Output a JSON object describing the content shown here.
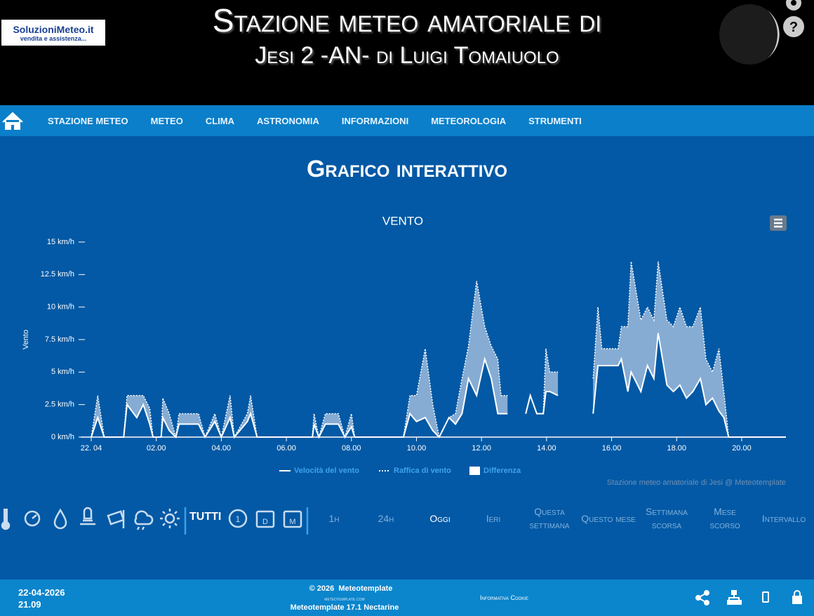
{
  "header": {
    "logo": {
      "brand": "SoluzioniMeteo.it",
      "tagline": "vendita e assistenza..."
    },
    "title_line1": "Stazione meteo amatoriale di",
    "title_line2": "Jesi 2 -AN- di Luigi Tomaiuolo"
  },
  "nav": {
    "items": [
      "STAZIONE METEO",
      "METEO",
      "CLIMA",
      "ASTRONOMIA",
      "INFORMAZIONI",
      "METEOROLOGIA",
      "STRUMENTI"
    ]
  },
  "page_title": "Grafico interattivo",
  "chart_data": {
    "type": "line",
    "title": "VENTO",
    "y_label": "Vento",
    "credit": "Stazione meteo amatoriale di Jesi @ Meteotemplate",
    "xlim": [
      0,
      21.36
    ],
    "xticks": [
      {
        "value": 0,
        "label": "22. 04"
      },
      {
        "value": 2,
        "label": "02.00"
      },
      {
        "value": 4,
        "label": "04.00"
      },
      {
        "value": 6,
        "label": "06.00"
      },
      {
        "value": 8,
        "label": "08.00"
      },
      {
        "value": 10,
        "label": "10.00"
      },
      {
        "value": 12,
        "label": "12.00"
      },
      {
        "value": 14,
        "label": "14.00"
      },
      {
        "value": 16,
        "label": "16.00"
      },
      {
        "value": 18,
        "label": "18.00"
      },
      {
        "value": 20,
        "label": "20.00"
      }
    ],
    "ylim": [
      0,
      15
    ],
    "yticks": [
      {
        "value": 0,
        "label": "0 km/h"
      },
      {
        "value": 2.5,
        "label": "2.5 km/h"
      },
      {
        "value": 5,
        "label": "5 km/h"
      },
      {
        "value": 7.5,
        "label": "7.5 km/h"
      },
      {
        "value": 10,
        "label": "10 km/h"
      },
      {
        "value": 12.5,
        "label": "12.5 km/h"
      },
      {
        "value": 15,
        "label": "15 km/h"
      }
    ],
    "x": [
      0,
      0.2,
      0.4,
      1.0,
      1.1,
      1.4,
      1.6,
      1.8,
      1.9,
      2.15,
      2.2,
      2.4,
      2.6,
      2.7,
      3.3,
      3.5,
      3.8,
      4.0,
      4.27,
      4.4,
      4.8,
      4.9,
      5.1,
      6.8,
      6.85,
      7.0,
      7.2,
      7.6,
      7.8,
      8.0,
      8.1,
      9.6,
      9.8,
      10.0,
      10.27,
      10.5,
      10.7,
      11.0,
      11.2,
      11.4,
      11.6,
      11.85,
      12.1,
      12.3,
      12.5,
      12.6,
      12.8,
      12.9,
      13.36,
      13.5,
      13.7,
      13.9,
      13.98,
      14.1,
      14.35,
      14.5,
      15.43,
      15.58,
      15.7,
      16.2,
      16.3,
      16.5,
      16.6,
      16.9,
      17.1,
      17.3,
      17.43,
      17.7,
      17.9,
      18.1,
      18.3,
      18.5,
      18.73,
      18.9,
      19.1,
      19.3,
      19.45,
      19.6,
      21.36
    ],
    "series": [
      {
        "name": "Velocità del vento",
        "color": "#ffffff",
        "dash": false,
        "values": [
          0,
          1.5,
          0,
          0,
          2.5,
          1.5,
          2.5,
          1.0,
          0,
          0,
          1.5,
          0.5,
          0,
          1.0,
          1.0,
          0,
          1.2,
          0,
          1.5,
          0,
          1.2,
          1.8,
          0,
          0,
          1.0,
          0,
          1.0,
          1.0,
          0,
          0.8,
          0,
          0,
          1.8,
          1.2,
          1.5,
          0.5,
          0,
          1.5,
          1.0,
          1.8,
          4.5,
          3.2,
          6.0,
          4.5,
          1.8,
          1.8,
          1.8,
          null,
          1.8,
          3.2,
          1.8,
          1.8,
          3.5,
          3.5,
          3.2,
          null,
          1.8,
          5.5,
          5.5,
          5.5,
          6.0,
          3.5,
          5.0,
          3.5,
          5.5,
          4.5,
          8.0,
          4.0,
          3.5,
          4.0,
          3.0,
          3.5,
          4.5,
          2.5,
          3.0,
          2.0,
          1.5,
          0,
          0
        ]
      },
      {
        "name": "Raffica di vento",
        "color": "#ffffff",
        "dash": true,
        "values": [
          0,
          3.2,
          0,
          0,
          3.2,
          3.2,
          3.2,
          2.2,
          0,
          0,
          3.0,
          1.8,
          0,
          1.8,
          1.8,
          0,
          1.8,
          0,
          3.2,
          0,
          1.8,
          3.2,
          0,
          0,
          1.8,
          0,
          1.8,
          1.8,
          0,
          1.8,
          0,
          0,
          3.2,
          3.2,
          6.8,
          2.5,
          0,
          1.5,
          1.8,
          4.5,
          7.0,
          12.0,
          8.5,
          7.0,
          6.0,
          3.2,
          3.2,
          null,
          1.8,
          3.2,
          1.8,
          1.8,
          6.8,
          5.0,
          5.0,
          null,
          4.5,
          10.0,
          6.8,
          6.8,
          8.5,
          8.5,
          13.5,
          9.0,
          10.0,
          9.0,
          13.5,
          9.0,
          8.5,
          10.0,
          8.5,
          8.5,
          10.0,
          6.0,
          5.0,
          6.8,
          3.5,
          0,
          0
        ]
      }
    ],
    "band": {
      "name": "Differenza",
      "color": "#9dbbdc"
    }
  },
  "toolbar": {
    "all": "TUTTI",
    "ranges": [
      "1h",
      "24h",
      "Oggi",
      "Ieri",
      "Questa settimana",
      "Questo mese",
      "Settimana scorsa",
      "Mese scorso",
      "Intervallo"
    ]
  },
  "footer": {
    "date": "22-04-2026",
    "time": "21.09",
    "copyright": "© 2026  Meteotemplate",
    "site": "meteotemplate.com",
    "version": "Meteotemplate 17.1 Nectarine",
    "cookie": "Informativa Cookie"
  }
}
